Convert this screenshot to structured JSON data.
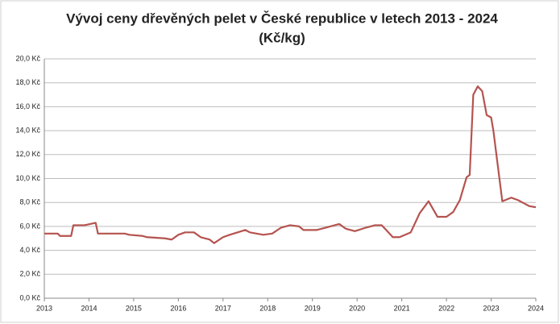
{
  "chart_data": {
    "type": "line",
    "title": "Vývoj ceny dřevěných pelet v České republice v letech 2013 - 2024",
    "subtitle": "(Kč/kg)",
    "series": [
      {
        "color": "#b5534f",
        "x": [
          2013.0,
          2013.3,
          2013.35,
          2013.6,
          2013.65,
          2013.9,
          2014.15,
          2014.2,
          2014.8,
          2014.9,
          2015.2,
          2015.3,
          2015.7,
          2015.85,
          2016.0,
          2016.15,
          2016.35,
          2016.5,
          2016.7,
          2016.8,
          2017.0,
          2017.15,
          2017.5,
          2017.6,
          2017.9,
          2018.1,
          2018.3,
          2018.5,
          2018.7,
          2018.8,
          2019.1,
          2019.3,
          2019.6,
          2019.75,
          2019.95,
          2020.2,
          2020.4,
          2020.55,
          2020.8,
          2020.95,
          2021.2,
          2021.4,
          2021.6,
          2021.8,
          2022.0,
          2022.15,
          2022.3,
          2022.45,
          2022.52,
          2022.6,
          2022.7,
          2022.8,
          2022.9,
          2023.0,
          2023.05,
          2023.25,
          2023.45,
          2023.6,
          2023.75,
          2023.85,
          2024.0
        ],
        "values": [
          5.4,
          5.4,
          5.2,
          5.2,
          6.1,
          6.1,
          6.3,
          5.4,
          5.4,
          5.3,
          5.2,
          5.1,
          5.0,
          4.9,
          5.3,
          5.5,
          5.5,
          5.1,
          4.9,
          4.6,
          5.1,
          5.3,
          5.7,
          5.5,
          5.3,
          5.4,
          5.9,
          6.1,
          6.0,
          5.7,
          5.7,
          5.9,
          6.2,
          5.8,
          5.6,
          5.9,
          6.1,
          6.1,
          5.1,
          5.1,
          5.5,
          7.1,
          8.1,
          6.8,
          6.8,
          7.2,
          8.2,
          10.1,
          10.3,
          17.0,
          17.7,
          17.3,
          15.3,
          15.1,
          14.0,
          8.1,
          8.4,
          8.2,
          7.9,
          7.7,
          7.6
        ]
      }
    ],
    "xlim": [
      2013,
      2024
    ],
    "xticks": [
      2013,
      2014,
      2015,
      2016,
      2017,
      2018,
      2019,
      2020,
      2021,
      2022,
      2023,
      2024
    ],
    "ylim": [
      0,
      20
    ],
    "yticks": [
      {
        "value": 0,
        "label": "0,0 Kč"
      },
      {
        "value": 2,
        "label": "2,0 Kč"
      },
      {
        "value": 4,
        "label": "4,0 Kč"
      },
      {
        "value": 6,
        "label": "6,0 Kč"
      },
      {
        "value": 8,
        "label": "8,0 Kč"
      },
      {
        "value": 10,
        "label": "10,0 Kč"
      },
      {
        "value": 12,
        "label": "12,0 Kč"
      },
      {
        "value": 14,
        "label": "14,0 Kč"
      },
      {
        "value": 16,
        "label": "16,0 Kč"
      },
      {
        "value": 18,
        "label": "18,0 Kč"
      },
      {
        "value": 20,
        "label": "20,0 Kč"
      }
    ],
    "grid": true
  }
}
